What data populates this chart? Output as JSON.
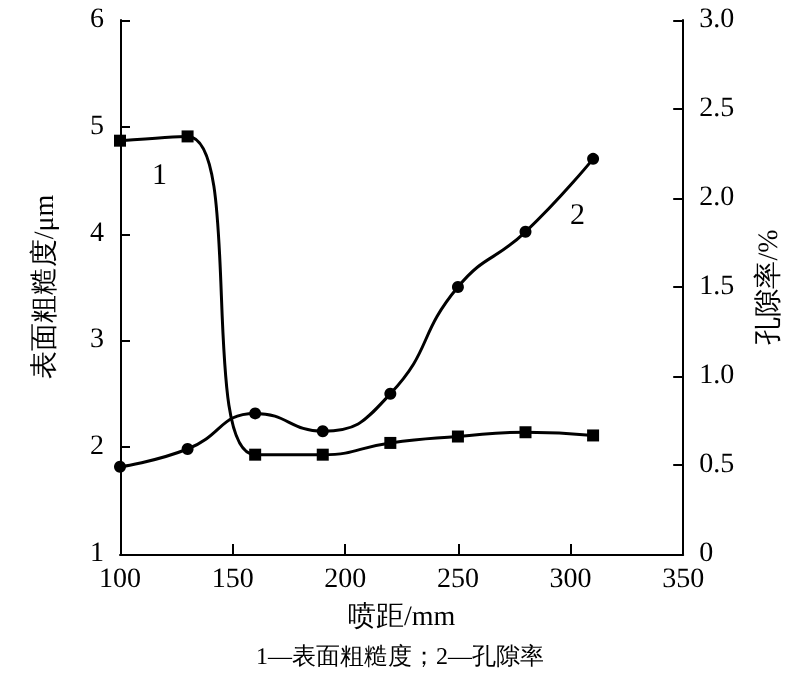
{
  "chart_data": {
    "type": "line",
    "xlabel": "喷距/mm",
    "ylabel": "表面粗糙度/μm",
    "y2label": "孔隙率/%",
    "annotations": [
      "1—表面粗糙度；2—孔隙率"
    ],
    "x": [
      100,
      130,
      160,
      190,
      220,
      250,
      280,
      310
    ],
    "series": [
      {
        "name": "1",
        "color": "#000000",
        "marker": "square",
        "values": [
          4.87,
          4.91,
          1.93,
          1.93,
          2.04,
          2.1,
          2.14,
          2.11
        ]
      },
      {
        "name": "2",
        "color": "#000000",
        "marker": "circle",
        "axis": "y2",
        "values": [
          0.49,
          0.59,
          0.79,
          0.69,
          0.9,
          1.5,
          1.81,
          2.22
        ]
      }
    ],
    "xlim": [
      100,
      350
    ],
    "xticks": [
      100,
      150,
      200,
      250,
      300,
      350
    ],
    "ylim": [
      1,
      6
    ],
    "yticks": [
      1,
      2,
      3,
      4,
      5,
      6
    ],
    "y2lim": [
      0,
      3
    ],
    "y2ticks": [
      {
        "value": 0,
        "label": "0"
      },
      {
        "value": 0.5,
        "label": "0.5"
      },
      {
        "value": 1,
        "label": "1.0"
      },
      {
        "value": 1.5,
        "label": "1.5"
      },
      {
        "value": 2,
        "label": "2.0"
      },
      {
        "value": 2.5,
        "label": "2.5"
      },
      {
        "value": 3,
        "label": "3.0"
      }
    ],
    "grid": false,
    "legend": false,
    "line_style": "solid"
  }
}
